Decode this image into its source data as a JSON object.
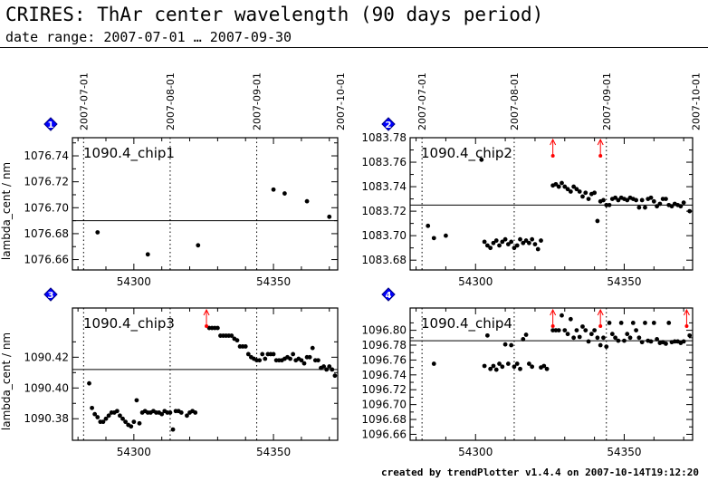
{
  "header": {
    "title": "CRIRES: ThAr center wavelength (90 days period)",
    "subtitle": "date range: 2007-07-01 … 2007-09-30"
  },
  "footer": {
    "credit": "created by trendPlotter v1.4.4 on 2007-10-14T19:12:20"
  },
  "colors": {
    "points": "#000000",
    "marker": "#0000ff",
    "arrow": "#ff0000",
    "axis": "#000000"
  },
  "chart_data": [
    {
      "type": "scatter",
      "badge": "1",
      "label": "1090.4_chip1",
      "ylabel": "lambda_cent / nm",
      "xlim": [
        54278,
        54373
      ],
      "ylim": [
        1076.652,
        1076.754
      ],
      "xticks": [
        54300,
        54350
      ],
      "yticks": [
        "1076.66",
        "1076.68",
        "1076.70",
        "1076.72",
        "1076.74"
      ],
      "ref_line": 1076.69,
      "date_lines": [
        54282,
        54313,
        54344,
        54374
      ],
      "date_labels": [
        "2007-07-01",
        "2007-08-01",
        "2007-09-01",
        "2007-10-01"
      ],
      "arrows": [],
      "points": [
        [
          54287,
          1076.681
        ],
        [
          54305,
          1076.664
        ],
        [
          54323,
          1076.671
        ],
        [
          54350,
          1076.714
        ],
        [
          54354,
          1076.711
        ],
        [
          54362,
          1076.705
        ],
        [
          54370,
          1076.693
        ]
      ]
    },
    {
      "type": "scatter",
      "badge": "2",
      "label": "1090.4_chip2",
      "ylabel": "",
      "xlim": [
        54278,
        54373
      ],
      "ylim": [
        1083.672,
        1083.78
      ],
      "xticks": [
        54300,
        54350
      ],
      "yticks": [
        "1083.68",
        "1083.70",
        "1083.72",
        "1083.74",
        "1083.76",
        "1083.78"
      ],
      "ref_line": 1083.725,
      "date_lines": [
        54282,
        54313,
        54344,
        54374
      ],
      "date_labels": [
        "2007-07-01",
        "2007-08-01",
        "2007-09-01",
        "2007-10-01"
      ],
      "arrows": [
        54326,
        54342
      ],
      "points": [
        [
          54284,
          1083.708
        ],
        [
          54286,
          1083.698
        ],
        [
          54290,
          1083.7
        ],
        [
          54302,
          1083.762
        ],
        [
          54303,
          1083.695
        ],
        [
          54304,
          1083.692
        ],
        [
          54305,
          1083.69
        ],
        [
          54306,
          1083.694
        ],
        [
          54307,
          1083.696
        ],
        [
          54308,
          1083.692
        ],
        [
          54309,
          1083.695
        ],
        [
          54310,
          1083.697
        ],
        [
          54311,
          1083.693
        ],
        [
          54312,
          1083.695
        ],
        [
          54313,
          1083.69
        ],
        [
          54314,
          1083.692
        ],
        [
          54315,
          1083.697
        ],
        [
          54316,
          1083.694
        ],
        [
          54317,
          1083.696
        ],
        [
          54318,
          1083.694
        ],
        [
          54319,
          1083.697
        ],
        [
          54320,
          1083.693
        ],
        [
          54321,
          1083.689
        ],
        [
          54322,
          1083.696
        ],
        [
          54326,
          1083.741
        ],
        [
          54327,
          1083.742
        ],
        [
          54328,
          1083.74
        ],
        [
          54329,
          1083.743
        ],
        [
          54330,
          1083.74
        ],
        [
          54331,
          1083.738
        ],
        [
          54332,
          1083.736
        ],
        [
          54333,
          1083.74
        ],
        [
          54334,
          1083.738
        ],
        [
          54335,
          1083.736
        ],
        [
          54336,
          1083.732
        ],
        [
          54337,
          1083.735
        ],
        [
          54338,
          1083.73
        ],
        [
          54339,
          1083.734
        ],
        [
          54340,
          1083.735
        ],
        [
          54341,
          1083.712
        ],
        [
          54342,
          1083.728
        ],
        [
          54343,
          1083.729
        ],
        [
          54344,
          1083.725
        ],
        [
          54345,
          1083.725
        ],
        [
          54346,
          1083.73
        ],
        [
          54347,
          1083.731
        ],
        [
          54348,
          1083.729
        ],
        [
          54349,
          1083.731
        ],
        [
          54350,
          1083.73
        ],
        [
          54351,
          1083.729
        ],
        [
          54352,
          1083.731
        ],
        [
          54353,
          1083.73
        ],
        [
          54354,
          1083.729
        ],
        [
          54355,
          1083.723
        ],
        [
          54356,
          1083.729
        ],
        [
          54357,
          1083.723
        ],
        [
          54358,
          1083.73
        ],
        [
          54359,
          1083.731
        ],
        [
          54360,
          1083.728
        ],
        [
          54361,
          1083.724
        ],
        [
          54362,
          1083.726
        ],
        [
          54363,
          1083.73
        ],
        [
          54364,
          1083.73
        ],
        [
          54365,
          1083.725
        ],
        [
          54366,
          1083.724
        ],
        [
          54367,
          1083.726
        ],
        [
          54368,
          1083.725
        ],
        [
          54369,
          1083.724
        ],
        [
          54370,
          1083.727
        ],
        [
          54372,
          1083.72
        ]
      ]
    },
    {
      "type": "scatter",
      "badge": "3",
      "label": "1090.4_chip3",
      "ylabel": "lambda_cent / nm",
      "xlim": [
        54278,
        54373
      ],
      "ylim": [
        1090.366,
        1090.452
      ],
      "xticks": [
        54300,
        54350
      ],
      "yticks": [
        "1090.38",
        "1090.40",
        "1090.42"
      ],
      "ref_line": 1090.412,
      "date_lines": [
        54282,
        54313,
        54344,
        54374
      ],
      "date_labels": [],
      "arrows": [
        54326
      ],
      "points": [
        [
          54284,
          1090.403
        ],
        [
          54285,
          1090.387
        ],
        [
          54286,
          1090.383
        ],
        [
          54287,
          1090.381
        ],
        [
          54288,
          1090.378
        ],
        [
          54289,
          1090.378
        ],
        [
          54290,
          1090.38
        ],
        [
          54291,
          1090.382
        ],
        [
          54292,
          1090.384
        ],
        [
          54293,
          1090.384
        ],
        [
          54294,
          1090.385
        ],
        [
          54295,
          1090.382
        ],
        [
          54296,
          1090.38
        ],
        [
          54297,
          1090.378
        ],
        [
          54298,
          1090.376
        ],
        [
          54299,
          1090.375
        ],
        [
          54300,
          1090.378
        ],
        [
          54301,
          1090.392
        ],
        [
          54302,
          1090.377
        ],
        [
          54303,
          1090.384
        ],
        [
          54304,
          1090.385
        ],
        [
          54305,
          1090.384
        ],
        [
          54306,
          1090.384
        ],
        [
          54307,
          1090.385
        ],
        [
          54308,
          1090.384
        ],
        [
          54309,
          1090.384
        ],
        [
          54310,
          1090.383
        ],
        [
          54311,
          1090.385
        ],
        [
          54312,
          1090.384
        ],
        [
          54313,
          1090.384
        ],
        [
          54314,
          1090.373
        ],
        [
          54315,
          1090.385
        ],
        [
          54316,
          1090.385
        ],
        [
          54317,
          1090.384
        ],
        [
          54319,
          1090.382
        ],
        [
          54320,
          1090.384
        ],
        [
          54321,
          1090.385
        ],
        [
          54322,
          1090.384
        ],
        [
          54327,
          1090.439
        ],
        [
          54328,
          1090.439
        ],
        [
          54329,
          1090.439
        ],
        [
          54330,
          1090.439
        ],
        [
          54331,
          1090.434
        ],
        [
          54332,
          1090.434
        ],
        [
          54333,
          1090.434
        ],
        [
          54334,
          1090.434
        ],
        [
          54335,
          1090.434
        ],
        [
          54336,
          1090.432
        ],
        [
          54337,
          1090.431
        ],
        [
          54338,
          1090.427
        ],
        [
          54339,
          1090.427
        ],
        [
          54340,
          1090.427
        ],
        [
          54341,
          1090.422
        ],
        [
          54342,
          1090.42
        ],
        [
          54343,
          1090.419
        ],
        [
          54344,
          1090.418
        ],
        [
          54345,
          1090.418
        ],
        [
          54346,
          1090.422
        ],
        [
          54347,
          1090.419
        ],
        [
          54348,
          1090.422
        ],
        [
          54349,
          1090.422
        ],
        [
          54350,
          1090.422
        ],
        [
          54351,
          1090.418
        ],
        [
          54352,
          1090.418
        ],
        [
          54353,
          1090.418
        ],
        [
          54354,
          1090.419
        ],
        [
          54355,
          1090.42
        ],
        [
          54356,
          1090.419
        ],
        [
          54357,
          1090.422
        ],
        [
          54358,
          1090.418
        ],
        [
          54359,
          1090.419
        ],
        [
          54360,
          1090.418
        ],
        [
          54361,
          1090.416
        ],
        [
          54362,
          1090.42
        ],
        [
          54363,
          1090.42
        ],
        [
          54364,
          1090.426
        ],
        [
          54365,
          1090.418
        ],
        [
          54366,
          1090.418
        ],
        [
          54367,
          1090.413
        ],
        [
          54368,
          1090.414
        ],
        [
          54369,
          1090.412
        ],
        [
          54370,
          1090.414
        ],
        [
          54371,
          1090.412
        ],
        [
          54372,
          1090.408
        ]
      ]
    },
    {
      "type": "scatter",
      "badge": "4",
      "label": "1090.4_chip4",
      "ylabel": "",
      "xlim": [
        54278,
        54373
      ],
      "ylim": [
        1096.652,
        1096.83
      ],
      "xticks": [
        54300,
        54350
      ],
      "yticks": [
        "1096.66",
        "1096.68",
        "1096.70",
        "1096.72",
        "1096.74",
        "1096.76",
        "1096.78",
        "1096.80"
      ],
      "ref_line": 1096.786,
      "date_lines": [
        54282,
        54313,
        54344,
        54374
      ],
      "date_labels": [],
      "arrows": [
        54326,
        54342,
        54371
      ],
      "points": [
        [
          54286,
          1096.755
        ],
        [
          54303,
          1096.752
        ],
        [
          54304,
          1096.793
        ],
        [
          54305,
          1096.748
        ],
        [
          54306,
          1096.752
        ],
        [
          54307,
          1096.747
        ],
        [
          54308,
          1096.755
        ],
        [
          54309,
          1096.751
        ],
        [
          54310,
          1096.781
        ],
        [
          54311,
          1096.755
        ],
        [
          54312,
          1096.78
        ],
        [
          54313,
          1096.751
        ],
        [
          54314,
          1096.755
        ],
        [
          54315,
          1096.748
        ],
        [
          54316,
          1096.788
        ],
        [
          54317,
          1096.794
        ],
        [
          54318,
          1096.755
        ],
        [
          54319,
          1096.751
        ],
        [
          54322,
          1096.75
        ],
        [
          54323,
          1096.752
        ],
        [
          54324,
          1096.748
        ],
        [
          54326,
          1096.8
        ],
        [
          54327,
          1096.8
        ],
        [
          54328,
          1096.8
        ],
        [
          54329,
          1096.82
        ],
        [
          54330,
          1096.8
        ],
        [
          54331,
          1096.795
        ],
        [
          54332,
          1096.815
        ],
        [
          54333,
          1096.79
        ],
        [
          54334,
          1096.8
        ],
        [
          54335,
          1096.791
        ],
        [
          54336,
          1096.805
        ],
        [
          54337,
          1096.8
        ],
        [
          54338,
          1096.785
        ],
        [
          54339,
          1096.795
        ],
        [
          54340,
          1096.8
        ],
        [
          54341,
          1096.79
        ],
        [
          54342,
          1096.78
        ],
        [
          54343,
          1096.79
        ],
        [
          54344,
          1096.778
        ],
        [
          54345,
          1096.81
        ],
        [
          54346,
          1096.795
        ],
        [
          54347,
          1096.79
        ],
        [
          54348,
          1096.786
        ],
        [
          54349,
          1096.81
        ],
        [
          54350,
          1096.786
        ],
        [
          54351,
          1096.795
        ],
        [
          54352,
          1096.79
        ],
        [
          54353,
          1096.81
        ],
        [
          54354,
          1096.8
        ],
        [
          54355,
          1096.79
        ],
        [
          54356,
          1096.784
        ],
        [
          54357,
          1096.81
        ],
        [
          54358,
          1096.786
        ],
        [
          54359,
          1096.785
        ],
        [
          54360,
          1096.81
        ],
        [
          54361,
          1096.788
        ],
        [
          54362,
          1096.783
        ],
        [
          54363,
          1096.784
        ],
        [
          54364,
          1096.782
        ],
        [
          54365,
          1096.81
        ],
        [
          54366,
          1096.784
        ],
        [
          54367,
          1096.785
        ],
        [
          54368,
          1096.785
        ],
        [
          54369,
          1096.783
        ],
        [
          54370,
          1096.785
        ],
        [
          54372,
          1096.793
        ]
      ]
    }
  ]
}
